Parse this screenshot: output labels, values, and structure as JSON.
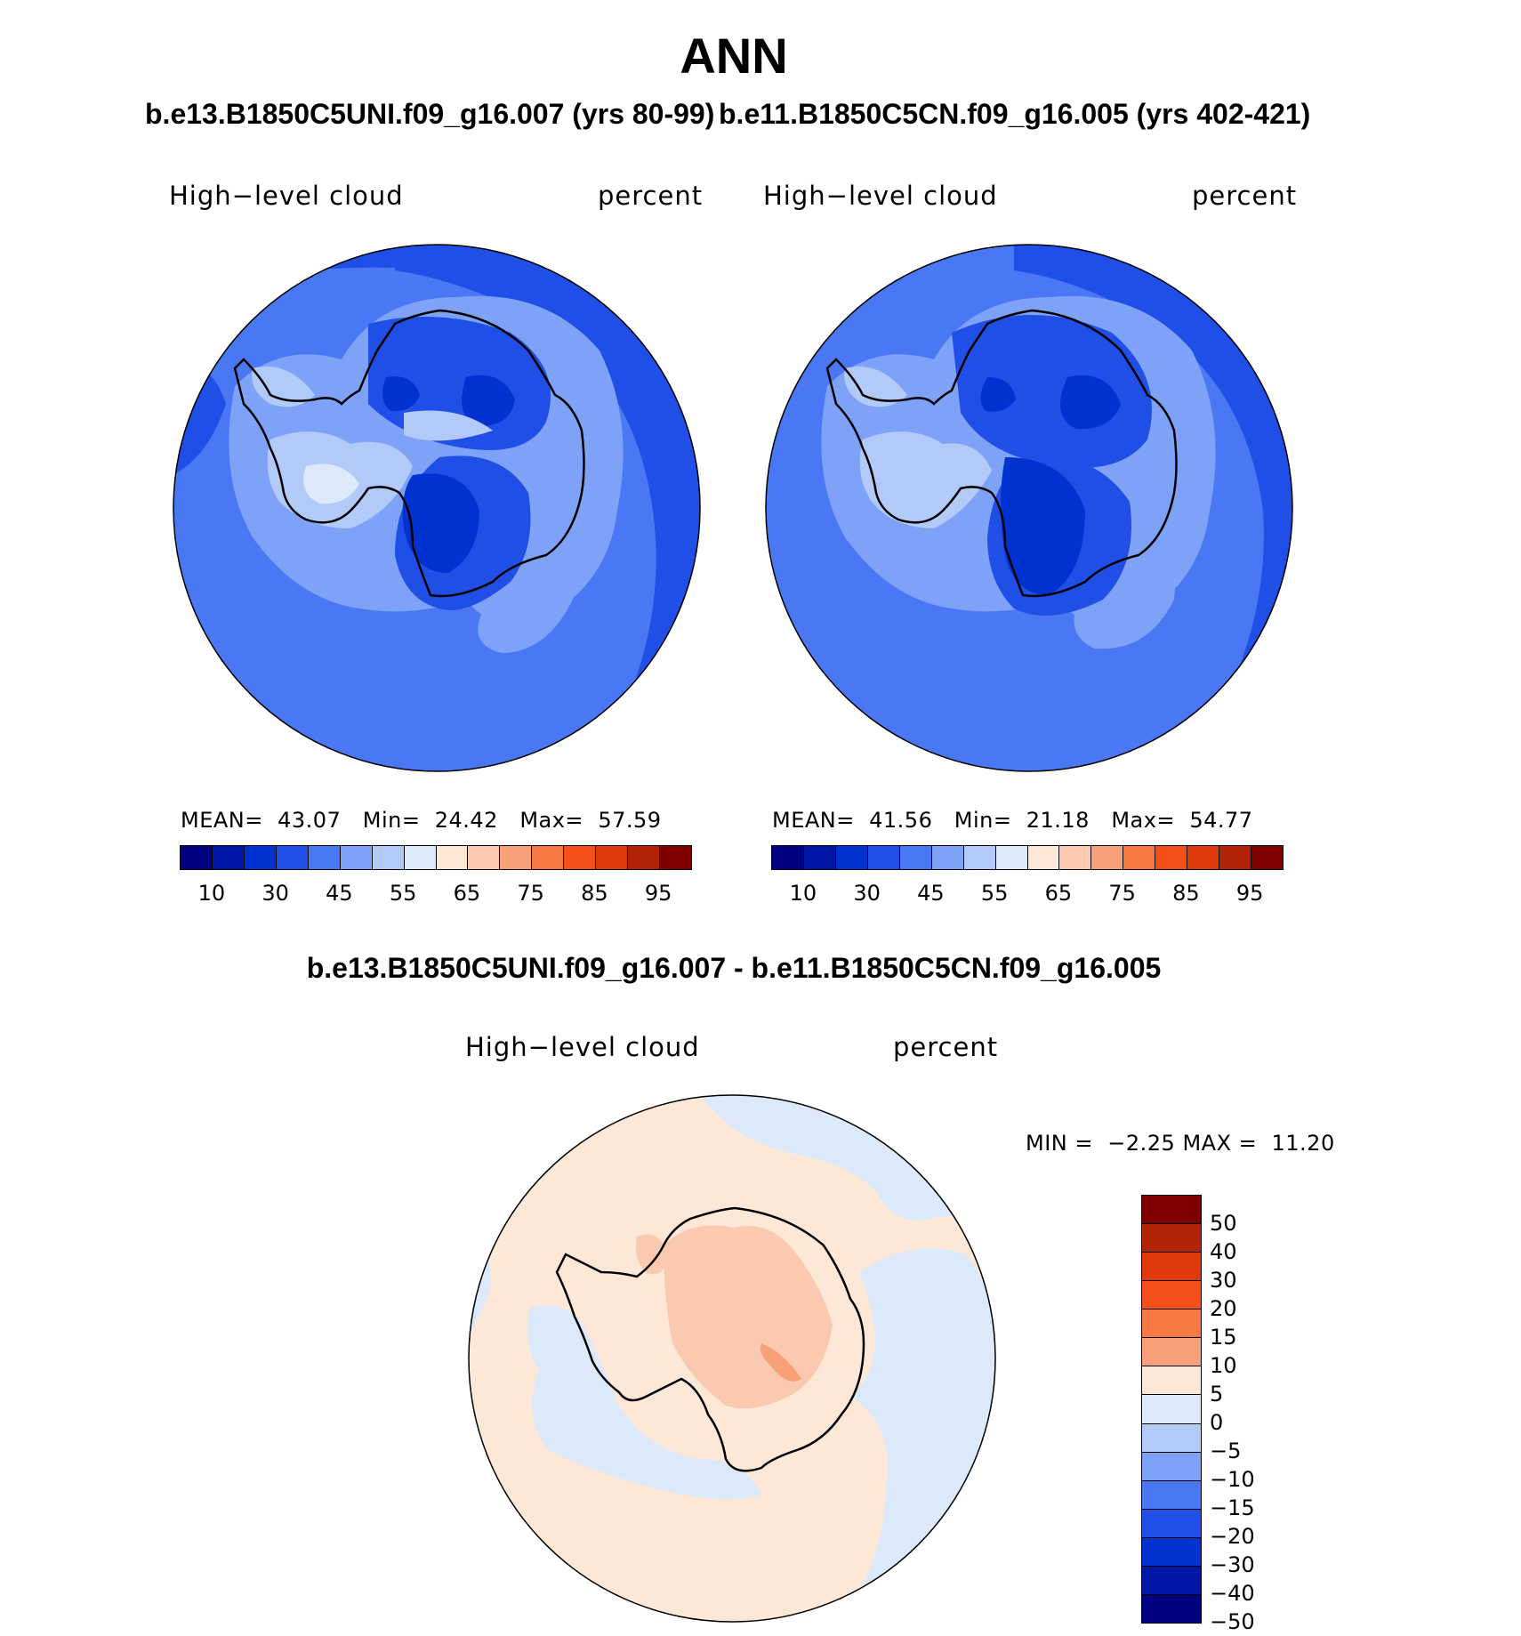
{
  "figure": {
    "title": "ANN",
    "variable": "High-level cloud",
    "units": "percent"
  },
  "panels": [
    {
      "case": "b.e13.B1850C5UNI.f09_g16.007 (yrs 80-99)",
      "label": "High−level cloud",
      "units": "percent",
      "mean_label": "MEAN=",
      "mean": "43.07",
      "min_label": "Min=",
      "min": "24.42",
      "max_label": "Max=",
      "max": "57.59"
    },
    {
      "case": "b.e11.B1850C5CN.f09_g16.005 (yrs 402-421)",
      "label": "High−level cloud",
      "units": "percent",
      "mean_label": "MEAN=",
      "mean": "41.56",
      "min_label": "Min=",
      "min": "21.18",
      "max_label": "Max=",
      "max": "54.77"
    }
  ],
  "difference": {
    "title": "b.e13.B1850C5UNI.f09_g16.007 - b.e11.B1850C5CN.f09_g16.005",
    "label": "High−level cloud",
    "units": "percent",
    "min_label": "MIN =",
    "min": "−2.25",
    "max_label": "MAX =",
    "max": "11.20"
  },
  "colorbar_main": {
    "colors": [
      "#000080",
      "#0018a8",
      "#0032d2",
      "#1f4fe6",
      "#4a78f5",
      "#7ea2f8",
      "#b2caf8",
      "#dbe9fb",
      "#fde8d8",
      "#fbc9b0",
      "#f8a077",
      "#f67842",
      "#f5501a",
      "#e03a0c",
      "#b42306",
      "#800000"
    ],
    "tick_labels": [
      "10",
      "30",
      "45",
      "55",
      "65",
      "75",
      "85",
      "95"
    ]
  },
  "colorbar_diff": {
    "colors": [
      "#800000",
      "#b42306",
      "#e03a0c",
      "#f5501a",
      "#f67842",
      "#f8a077",
      "#fde8d8",
      "#dbe9fb",
      "#b2caf8",
      "#7ea2f8",
      "#4a78f5",
      "#1f4fe6",
      "#0032d2",
      "#0018a8",
      "#000080"
    ],
    "tick_labels": [
      "50",
      "40",
      "30",
      "20",
      "15",
      "10",
      "5",
      "0",
      "−5",
      "−10",
      "−15",
      "−20",
      "−30",
      "−40",
      "−50"
    ]
  },
  "map_colors": {
    "ocean_main": "#4a78f5",
    "level_low": "#1f4fe6",
    "level_lower": "#0032d2",
    "level_mid": "#7ea2f8",
    "level_high": "#b2caf8",
    "level_top": "#dbe9fb",
    "diff_background": "#fde8d8",
    "diff_neg": "#dbe9fb",
    "diff_pos": "#fbc9b0",
    "diff_pos2": "#f8a077"
  }
}
